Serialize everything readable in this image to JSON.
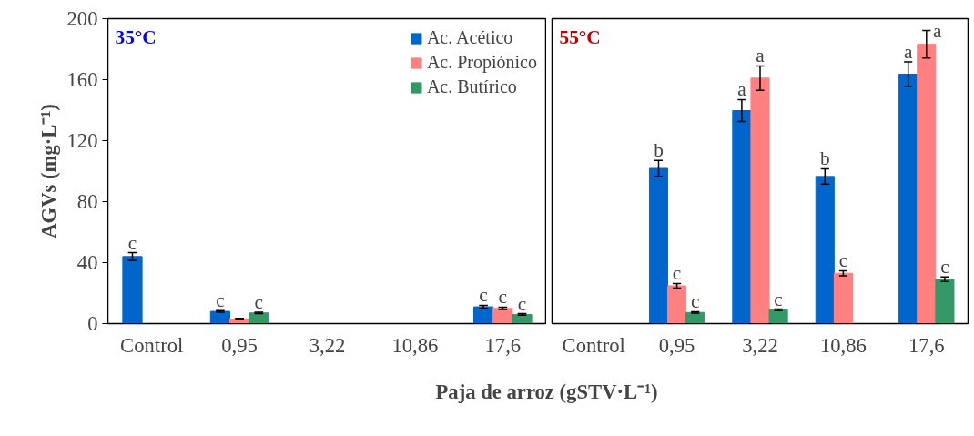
{
  "chart_data": [
    {
      "type": "bar",
      "title": "35°C",
      "ylabel": "AGVs (mg·L⁻¹)",
      "xlabel": "Paja de arroz (gSTV·L⁻¹)",
      "categories": [
        "Control",
        "0,95",
        "3,22",
        "10,86",
        "17,6"
      ],
      "series": [
        {
          "name": "Ac. Acético",
          "color": "#0066cc",
          "values": [
            44,
            8,
            0,
            0,
            11
          ],
          "errors": [
            2.5,
            0.5,
            null,
            null,
            1
          ],
          "value_labels": [
            "c",
            "c",
            null,
            null,
            "c"
          ]
        },
        {
          "name": "Ac. Propiónico",
          "color": "#ff8080",
          "values": [
            0,
            3,
            0,
            0,
            10
          ],
          "errors": [
            null,
            0.5,
            null,
            null,
            0.8
          ],
          "value_labels": [
            null,
            null,
            null,
            null,
            "c"
          ]
        },
        {
          "name": "Ac. Butírico",
          "color": "#339966",
          "values": [
            0,
            7,
            0,
            0,
            6
          ],
          "errors": [
            null,
            0.5,
            null,
            null,
            0.5
          ],
          "value_labels": [
            null,
            "c",
            null,
            null,
            "c"
          ]
        }
      ],
      "ylim": [
        0,
        200
      ],
      "yticks": [
        0,
        40,
        80,
        120,
        160,
        200
      ],
      "grid": false,
      "legend": "top right"
    },
    {
      "type": "bar",
      "title": "55°C",
      "categories": [
        "Control",
        "0,95",
        "3,22",
        "10,86",
        "17,6"
      ],
      "series": [
        {
          "color": "#0066cc",
          "values": [
            0,
            101.8,
            139.7,
            96.5,
            163.6
          ],
          "errors": [
            null,
            5.2,
            7.2,
            5,
            8
          ],
          "value_labels": [
            null,
            "b",
            "a",
            "b",
            "a"
          ]
        },
        {
          "color": "#ff8080",
          "values": [
            0,
            24.8,
            161,
            33,
            183.2
          ],
          "errors": [
            null,
            1.5,
            8,
            1.7,
            9
          ],
          "value_labels": [
            null,
            "c",
            "a",
            "c",
            "a"
          ]
        },
        {
          "color": "#339966",
          "values": [
            0,
            7.3,
            9,
            0,
            29.1
          ],
          "errors": [
            null,
            0.5,
            0.5,
            null,
            1.5
          ],
          "value_labels": [
            null,
            "c",
            "c",
            null,
            "c"
          ]
        }
      ],
      "ylim": [
        0,
        200
      ],
      "yticks": [
        0,
        40,
        80,
        120,
        160,
        200
      ],
      "grid": false,
      "legend": false,
      "tick_labels": "x"
    }
  ]
}
